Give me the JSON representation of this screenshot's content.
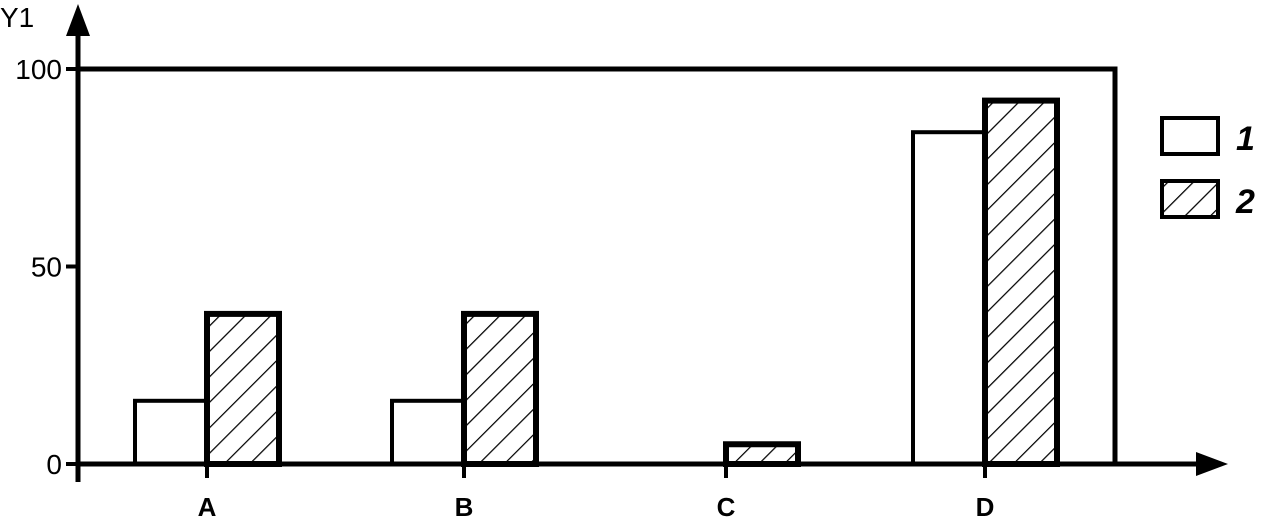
{
  "chart_data": {
    "type": "bar",
    "ylabel": "Y1",
    "xlabel": "",
    "ylim": [
      0,
      100
    ],
    "yticks": [
      0,
      50,
      100
    ],
    "categories": [
      "A",
      "B",
      "C",
      "D"
    ],
    "series": [
      {
        "name": "1",
        "pattern": "none",
        "values": [
          16,
          16,
          0,
          84
        ]
      },
      {
        "name": "2",
        "pattern": "hatch",
        "values": [
          38,
          38,
          5,
          92
        ]
      }
    ],
    "legend": "right",
    "grid": false,
    "colors": {
      "stroke": "#000000",
      "fill": "#ffffff"
    }
  }
}
